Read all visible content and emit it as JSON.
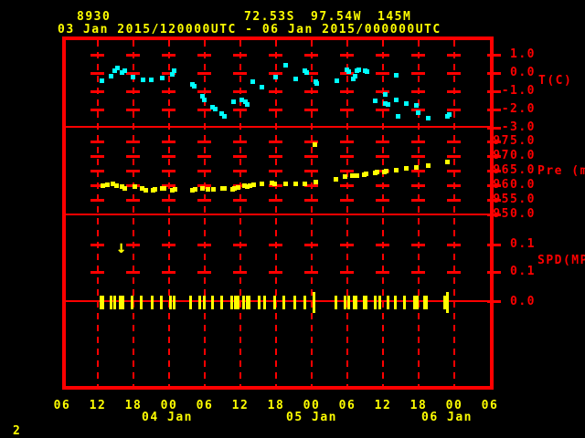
{
  "header": {
    "station_id": "8930",
    "latitude": "72.53S",
    "longitude": "97.54W",
    "elevation": "145M",
    "time_range": "03 Jan 2015/120000UTC - 06 Jan 2015/000000UTC"
  },
  "page_number": "2",
  "colors": {
    "background": "#000000",
    "frame_and_axes": "#ff0000",
    "header_text": "#ffff00",
    "temperature_points": "#00ffff",
    "pressure_points": "#ffff00",
    "speed_ticks": "#ffff00"
  },
  "x_axis": {
    "hour_labels": [
      "06",
      "12",
      "18",
      "00",
      "06",
      "12",
      "18",
      "00",
      "06",
      "12",
      "18",
      "00",
      "06"
    ],
    "date_labels": [
      "04 Jan",
      "05 Jan",
      "06 Jan"
    ],
    "tick_interval_hours": 6,
    "x_hours_since": "03 Jan 2015 0600UTC",
    "x_range_hours": [
      0,
      72
    ]
  },
  "chart_data": [
    {
      "type": "scatter",
      "name": "temperature",
      "ylabel": "T(C)",
      "ytick_labels": [
        "1.0",
        "0.0",
        "-1.0",
        "-2.0",
        "-3.0"
      ],
      "ytick_values": [
        1.0,
        0.0,
        -1.0,
        -2.0,
        -3.0
      ],
      "ylim": [
        -3.0,
        1.8
      ],
      "points": [
        [
          6.6,
          -0.4
        ],
        [
          8.2,
          -0.15
        ],
        [
          8.7,
          0.15
        ],
        [
          9.2,
          0.28
        ],
        [
          10.0,
          0.03
        ],
        [
          10.4,
          0.13
        ],
        [
          11.8,
          -0.2
        ],
        [
          13.5,
          -0.33
        ],
        [
          14.9,
          -0.33
        ],
        [
          16.7,
          -0.25
        ],
        [
          18.4,
          -0.03
        ],
        [
          18.8,
          0.13
        ],
        [
          21.8,
          -0.58
        ],
        [
          22.2,
          -0.7
        ],
        [
          23.6,
          -1.25
        ],
        [
          23.8,
          -1.43
        ],
        [
          25.3,
          -1.83
        ],
        [
          25.7,
          -1.95
        ],
        [
          26.8,
          -2.2
        ],
        [
          27.2,
          -2.33
        ],
        [
          28.7,
          -1.53
        ],
        [
          30.2,
          -1.43
        ],
        [
          30.7,
          -1.53
        ],
        [
          31.1,
          -1.68
        ],
        [
          32.0,
          -0.43
        ],
        [
          33.5,
          -0.75
        ],
        [
          35.8,
          -0.2
        ],
        [
          37.5,
          0.43
        ],
        [
          39.3,
          -0.28
        ],
        [
          40.8,
          0.15
        ],
        [
          41.0,
          0.05
        ],
        [
          42.6,
          -0.43
        ],
        [
          42.8,
          -0.55
        ],
        [
          46.1,
          -0.4
        ],
        [
          47.8,
          0.2
        ],
        [
          48.2,
          0.08
        ],
        [
          48.9,
          -0.28
        ],
        [
          49.2,
          -0.13
        ],
        [
          49.5,
          0.15
        ],
        [
          49.8,
          0.18
        ],
        [
          50.9,
          0.13
        ],
        [
          51.3,
          0.08
        ],
        [
          52.6,
          -1.5
        ],
        [
          54.3,
          -1.13
        ],
        [
          54.3,
          -1.63
        ],
        [
          54.8,
          -1.68
        ],
        [
          56.1,
          -0.08
        ],
        [
          56.1,
          -1.43
        ],
        [
          56.4,
          -2.33
        ],
        [
          57.9,
          -1.63
        ],
        [
          59.6,
          -1.75
        ],
        [
          59.8,
          -2.13
        ],
        [
          61.6,
          -2.45
        ],
        [
          64.7,
          -2.33
        ],
        [
          65.1,
          -2.25
        ]
      ]
    },
    {
      "type": "scatter",
      "name": "pressure",
      "ylabel": "Pre (mb)",
      "ytick_labels": [
        "975.0",
        "970.0",
        "965.0",
        "960.0",
        "955.0",
        "950.0"
      ],
      "ytick_values": [
        975.0,
        970.0,
        965.0,
        960.0,
        955.0,
        950.0
      ],
      "ylim": [
        950.0,
        980.0
      ],
      "points": [
        [
          6.7,
          960.0
        ],
        [
          7.5,
          960.2
        ],
        [
          8.5,
          960.5
        ],
        [
          9.1,
          960.0
        ],
        [
          10.0,
          959.7
        ],
        [
          10.5,
          959.0
        ],
        [
          12.2,
          959.7
        ],
        [
          13.4,
          959.0
        ],
        [
          14.0,
          958.5
        ],
        [
          15.2,
          958.5
        ],
        [
          15.6,
          958.7
        ],
        [
          16.7,
          959.0
        ],
        [
          17.1,
          959.2
        ],
        [
          18.5,
          958.5
        ],
        [
          18.9,
          958.7
        ],
        [
          21.8,
          958.5
        ],
        [
          22.3,
          958.7
        ],
        [
          23.6,
          959.0
        ],
        [
          24.4,
          958.7
        ],
        [
          25.4,
          958.7
        ],
        [
          26.9,
          959.2
        ],
        [
          27.2,
          959.0
        ],
        [
          28.6,
          958.7
        ],
        [
          28.9,
          959.0
        ],
        [
          29.6,
          959.5
        ],
        [
          30.6,
          960.0
        ],
        [
          31.0,
          959.8
        ],
        [
          31.6,
          960.0
        ],
        [
          32.1,
          960.2
        ],
        [
          33.6,
          960.5
        ],
        [
          35.3,
          960.8
        ],
        [
          35.7,
          960.5
        ],
        [
          37.5,
          960.5
        ],
        [
          39.3,
          960.5
        ],
        [
          40.8,
          960.5
        ],
        [
          42.5,
          974.0
        ],
        [
          42.6,
          961.2
        ],
        [
          46.0,
          962.3
        ],
        [
          47.6,
          963.1
        ],
        [
          48.7,
          963.4
        ],
        [
          49.1,
          963.3
        ],
        [
          49.5,
          963.4
        ],
        [
          50.8,
          963.9
        ],
        [
          51.1,
          964.1
        ],
        [
          52.6,
          964.3
        ],
        [
          52.9,
          964.6
        ],
        [
          54.2,
          964.8
        ],
        [
          54.4,
          965.1
        ],
        [
          56.1,
          965.3
        ],
        [
          57.8,
          966.0
        ],
        [
          59.5,
          966.4
        ],
        [
          61.5,
          966.9
        ],
        [
          64.8,
          968.2
        ]
      ]
    },
    {
      "type": "event-ticks",
      "name": "wind-speed",
      "ylabel": "SPD(MPS)",
      "ytick_labels": [
        "0.1",
        "0.1",
        "0.0"
      ],
      "baseline_value": 0.0,
      "arrow_time_hours": 10.0,
      "tall_event_times": [
        42.3,
        64.8
      ],
      "event_times_hours": [
        6.4,
        6.8,
        8.1,
        8.7,
        9.7,
        10.2,
        11.7,
        13.2,
        15.1,
        16.6,
        18.2,
        18.7,
        21.6,
        23.1,
        23.8,
        25.3,
        26.7,
        28.4,
        29.1,
        29.5,
        30.5,
        31.0,
        31.4,
        33.0,
        34.0,
        35.7,
        37.2,
        39.0,
        40.7,
        42.3,
        46.0,
        47.5,
        48.2,
        49.1,
        49.4,
        50.8,
        51.1,
        52.6,
        53.4,
        54.7,
        56.0,
        57.5,
        59.3,
        59.7,
        60.9,
        61.3,
        64.3,
        64.8
      ]
    }
  ]
}
